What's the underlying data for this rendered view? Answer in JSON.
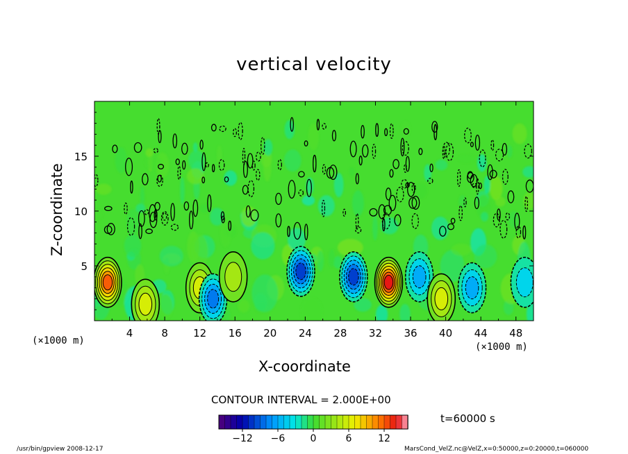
{
  "chart_data": {
    "type": "heatmap",
    "title": "vertical velocity",
    "xlabel": "X-coordinate",
    "ylabel": "Z-coordinate",
    "x_unit": "(×1000 m)",
    "y_unit": "(×1000 m)",
    "xlim": [
      0,
      50
    ],
    "ylim": [
      0,
      20
    ],
    "x_ticks": [
      4,
      8,
      12,
      16,
      20,
      24,
      28,
      32,
      36,
      40,
      44,
      48
    ],
    "y_ticks": [
      5,
      10,
      15
    ],
    "contour_interval": "CONTOUR INTERVAL = 2.000E+00",
    "time_label": "t=60000 s",
    "colorbar": {
      "min": -16,
      "max": 16,
      "ticks": [
        -12,
        -6,
        0,
        6,
        12
      ],
      "tick_labels": [
        "−12",
        "−6",
        "0",
        "6",
        "12"
      ]
    },
    "extrema": [
      {
        "x": 1.5,
        "z": 3.5,
        "value": 12,
        "sign": "max"
      },
      {
        "x": 5.8,
        "z": 1.5,
        "value": 6,
        "sign": "max"
      },
      {
        "x": 12,
        "z": 3,
        "value": 6,
        "sign": "max"
      },
      {
        "x": 13.5,
        "z": 2,
        "value": -8,
        "sign": "min"
      },
      {
        "x": 15.8,
        "z": 4,
        "value": 4,
        "sign": "max"
      },
      {
        "x": 23.5,
        "z": 4.5,
        "value": -10,
        "sign": "min"
      },
      {
        "x": 29.5,
        "z": 4,
        "value": -10,
        "sign": "min"
      },
      {
        "x": 33.5,
        "z": 3.5,
        "value": 14,
        "sign": "max"
      },
      {
        "x": 37,
        "z": 4,
        "value": -6,
        "sign": "min"
      },
      {
        "x": 39.5,
        "z": 2,
        "value": 6,
        "sign": "max"
      },
      {
        "x": 43,
        "z": 3,
        "value": -6,
        "sign": "min"
      },
      {
        "x": 49,
        "z": 3.5,
        "value": -4,
        "sign": "min"
      }
    ]
  },
  "footer": {
    "left": "/usr/bin/gpview  2008-12-17",
    "right": "MarsCond_VelZ.nc@VelZ,x=0:50000,z=0:20000,t=060000"
  }
}
